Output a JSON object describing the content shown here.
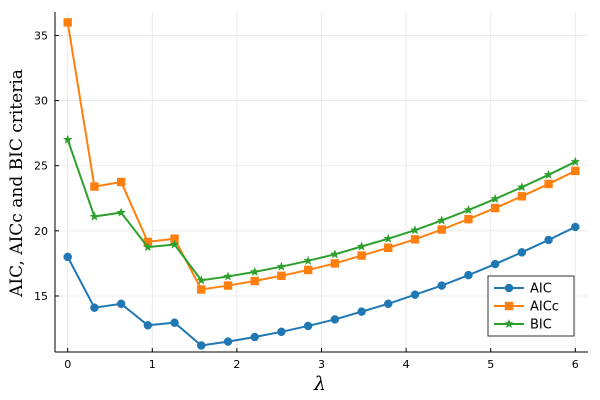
{
  "chart_data": {
    "type": "line",
    "title": "",
    "xlabel": "λ",
    "ylabel": "AIC,  AICc and BIC criteria",
    "xlim": [
      -0.15,
      6.15
    ],
    "ylim": [
      10.7,
      36.8
    ],
    "xticks": [
      0,
      1,
      2,
      3,
      4,
      5,
      6
    ],
    "yticks": [
      15,
      20,
      25,
      30,
      35
    ],
    "grid": true,
    "legend_position": "bottom-right",
    "x": [
      0,
      0.316,
      0.632,
      0.947,
      1.263,
      1.579,
      1.895,
      2.211,
      2.526,
      2.842,
      3.158,
      3.474,
      3.789,
      4.105,
      4.421,
      4.737,
      5.053,
      5.368,
      5.684,
      6.0
    ],
    "series": [
      {
        "name": "AIC",
        "color": "#1f77b4",
        "marker": "circle",
        "values": [
          18.0,
          14.1,
          14.4,
          12.75,
          12.95,
          11.2,
          11.5,
          11.85,
          12.25,
          12.7,
          13.2,
          13.8,
          14.4,
          15.1,
          15.8,
          16.6,
          17.45,
          18.35,
          19.3,
          20.3
        ]
      },
      {
        "name": "AICc",
        "color": "#ff7f0e",
        "marker": "square",
        "values": [
          36.0,
          23.4,
          23.75,
          19.15,
          19.4,
          15.5,
          15.8,
          16.15,
          16.55,
          17.0,
          17.5,
          18.1,
          18.7,
          19.35,
          20.1,
          20.9,
          21.75,
          22.65,
          23.6,
          24.6
        ]
      },
      {
        "name": "BIC",
        "color": "#2ca02c",
        "marker": "star",
        "values": [
          27.0,
          21.1,
          21.4,
          18.75,
          18.95,
          16.2,
          16.5,
          16.85,
          17.25,
          17.7,
          18.2,
          18.8,
          19.4,
          20.05,
          20.8,
          21.6,
          22.45,
          23.35,
          24.3,
          25.3
        ]
      }
    ]
  }
}
